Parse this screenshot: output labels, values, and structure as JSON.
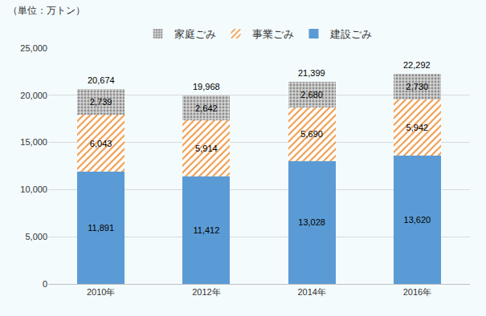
{
  "chart_data": {
    "type": "bar",
    "stacked": true,
    "unit_label": "（単位：万トン）",
    "categories": [
      "2010年",
      "2012年",
      "2014年",
      "2016年"
    ],
    "series": [
      {
        "name": "建設ごみ",
        "color": "#5b9bd5",
        "marker": "solid",
        "values": [
          11891,
          11412,
          13028,
          13620
        ],
        "value_labels": [
          "11,891",
          "11,412",
          "13,028",
          "13,620"
        ]
      },
      {
        "name": "事業ごみ",
        "color": "#ed9a4a",
        "marker": "hatch",
        "values": [
          6043,
          5914,
          5690,
          5942
        ],
        "value_labels": [
          "6,043",
          "5,914",
          "5,690",
          "5,942"
        ]
      },
      {
        "name": "家庭ごみ",
        "color": "#8c8c8c",
        "marker": "dots",
        "values": [
          2739,
          2642,
          2680,
          2730
        ],
        "value_labels": [
          "2,739",
          "2,642",
          "2,680",
          "2,730"
        ]
      }
    ],
    "totals": {
      "values": [
        20674,
        19968,
        21399,
        22292
      ],
      "value_labels": [
        "20,674",
        "19,968",
        "21,399",
        "22,292"
      ]
    },
    "data_labels": true,
    "ylim": [
      0,
      25000
    ],
    "yticks": [
      0,
      {
        "value": 5000,
        "label": "5,000"
      },
      {
        "value": 10000,
        "label": "10,000"
      },
      {
        "value": 15000,
        "label": "15,000"
      },
      {
        "value": 20000,
        "label": "20,000"
      },
      {
        "value": 25000,
        "label": "25,000"
      }
    ],
    "grid": true,
    "legend": "top"
  }
}
